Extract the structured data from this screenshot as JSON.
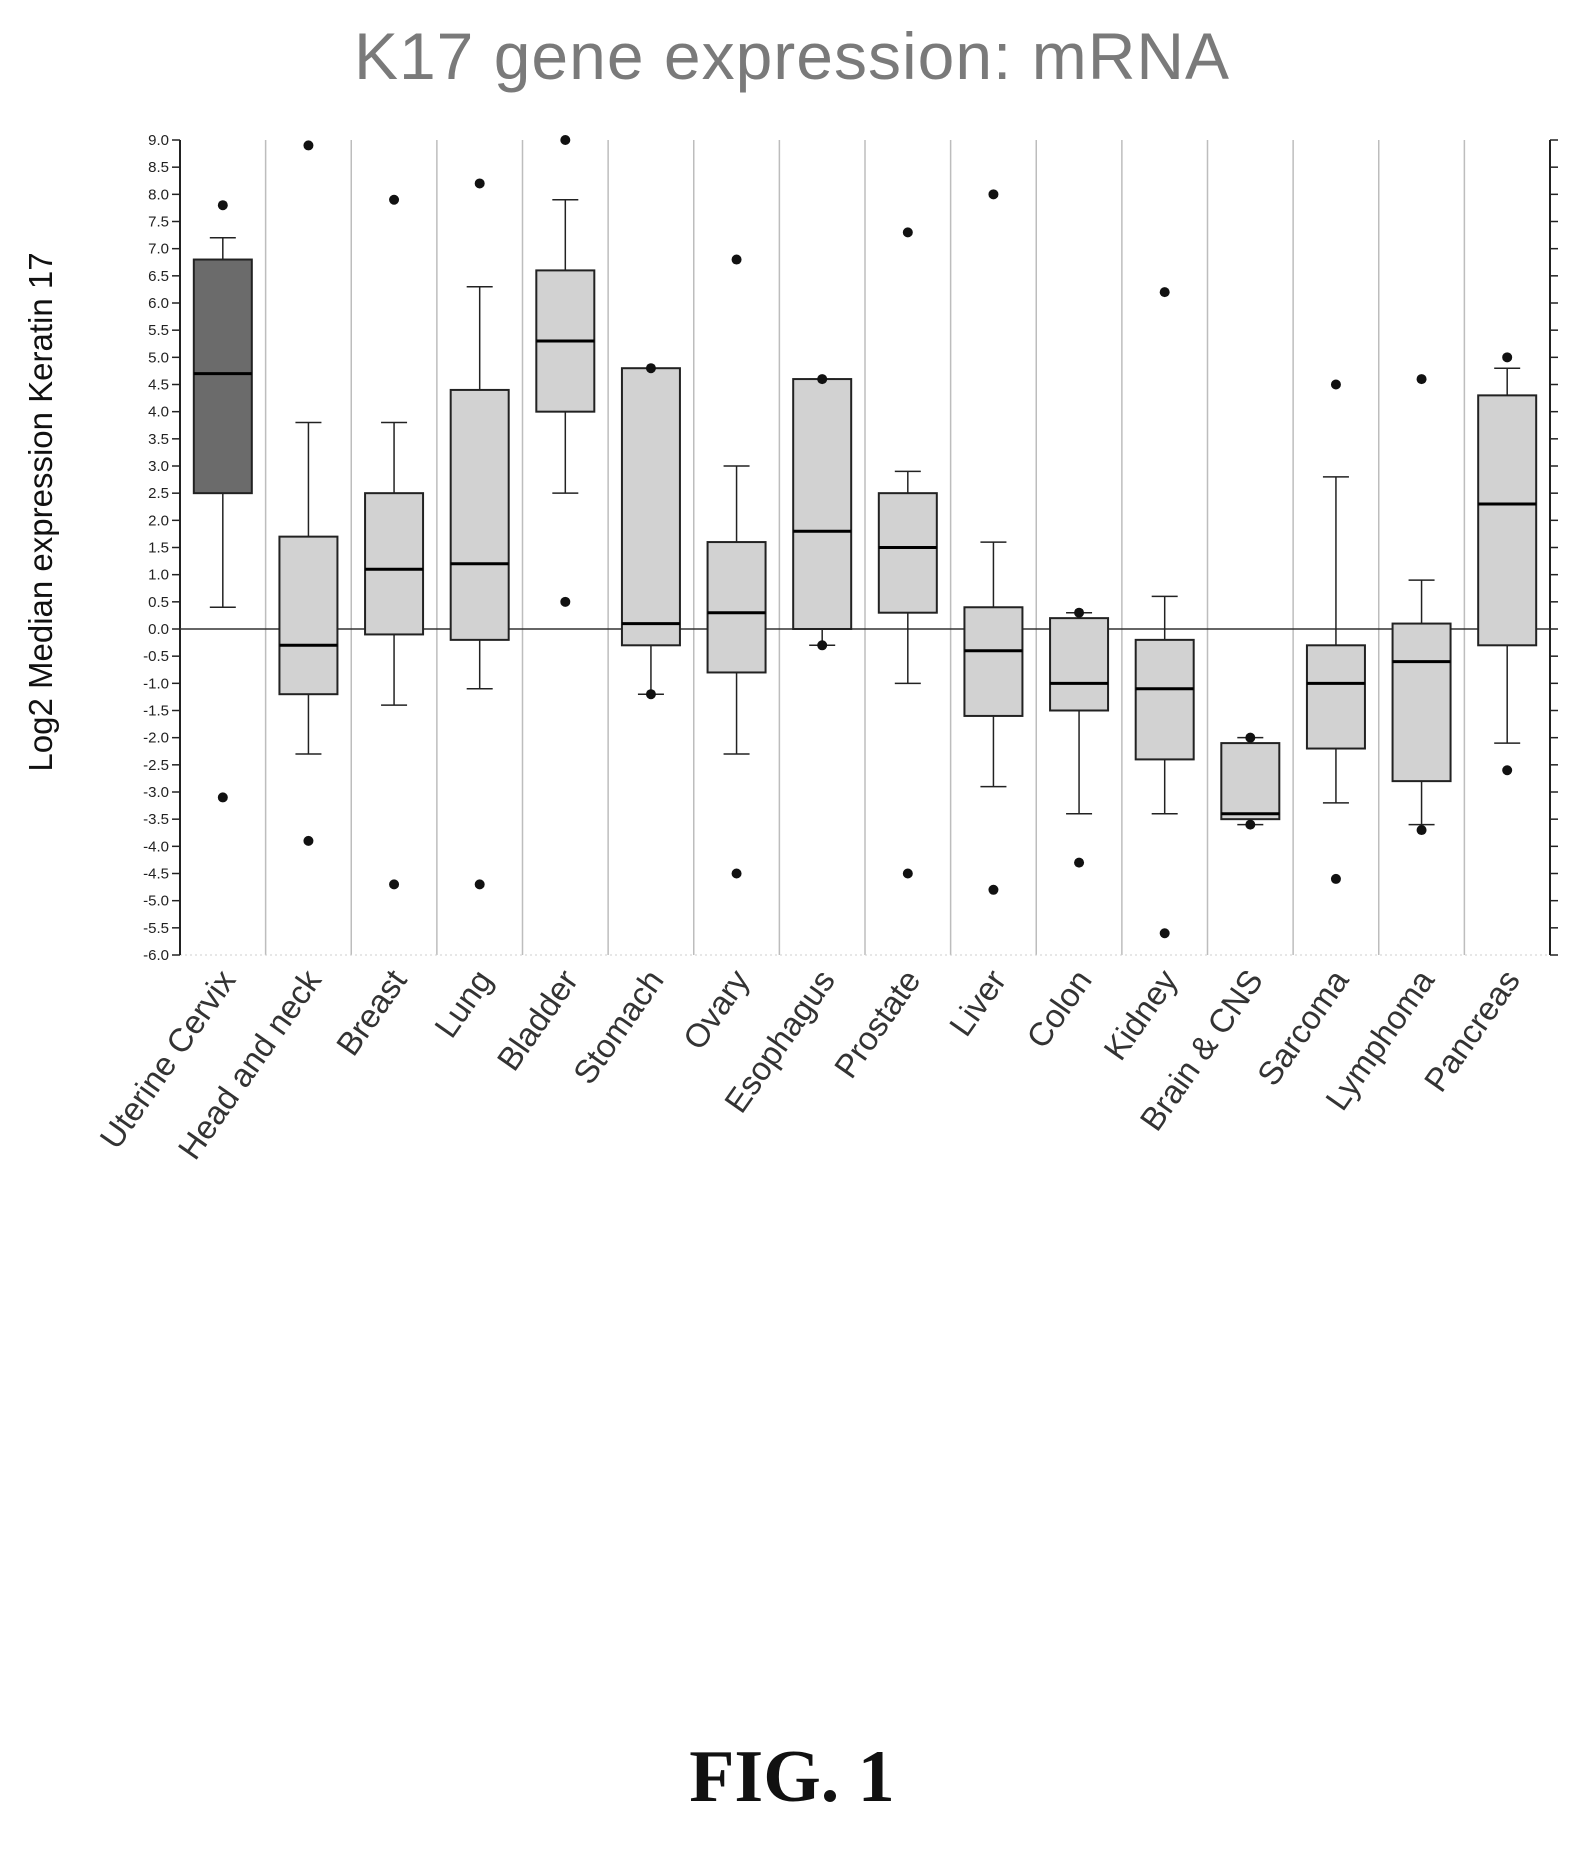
{
  "figure": {
    "label": "FIG. 1"
  },
  "colors": {
    "box_default": "#d2d2d2",
    "box_highlight": "#6b6b6b",
    "stroke": "#222222",
    "panel_line": "#bdbdbd"
  },
  "chart_data": {
    "type": "box",
    "title": "K17 gene expression: mRNA",
    "ylabel": "Log2 Median expression Keratin 17",
    "xlabel": "",
    "ylim": [
      -6.0,
      9.0
    ],
    "yticks": [
      "9.0",
      "8.5",
      "8.0",
      "7.5",
      "7.0",
      "6.5",
      "6.0",
      "5.5",
      "5.0",
      "4.5",
      "4.0",
      "3.5",
      "3.0",
      "2.5",
      "2.0",
      "1.5",
      "1.0",
      "0.5",
      "0.0",
      "-0.5",
      "-1.0",
      "-1.5",
      "-2.0",
      "-2.5",
      "-3.0",
      "-3.5",
      "-4.0",
      "-4.5",
      "-5.0",
      "-5.5",
      "-6.0"
    ],
    "reference_line": 0.0,
    "grid": false,
    "categories": [
      "Uterine Cervix",
      "Head and neck",
      "Breast",
      "Lung",
      "Bladder",
      "Stomach",
      "Ovary",
      "Esophagus",
      "Prostate",
      "Liver",
      "Colon",
      "Kidney",
      "Brain & CNS",
      "Sarcoma",
      "Lymphoma",
      "Pancreas"
    ],
    "boxes": [
      {
        "category": "Uterine Cervix",
        "whisker_low": 0.4,
        "q1": 2.5,
        "median": 4.7,
        "q3": 6.8,
        "whisker_high": 7.2,
        "outliers": [
          -3.1,
          7.8
        ],
        "highlight": true
      },
      {
        "category": "Head and neck",
        "whisker_low": -2.3,
        "q1": -1.2,
        "median": -0.3,
        "q3": 1.7,
        "whisker_high": 3.8,
        "outliers": [
          -3.9,
          8.9
        ],
        "highlight": false
      },
      {
        "category": "Breast",
        "whisker_low": -1.4,
        "q1": -0.1,
        "median": 1.1,
        "q3": 2.5,
        "whisker_high": 3.8,
        "outliers": [
          -4.7,
          7.9
        ],
        "highlight": false
      },
      {
        "category": "Lung",
        "whisker_low": -1.1,
        "q1": -0.2,
        "median": 1.2,
        "q3": 4.4,
        "whisker_high": 6.3,
        "outliers": [
          -4.7,
          8.2
        ],
        "highlight": false
      },
      {
        "category": "Bladder",
        "whisker_low": 2.5,
        "q1": 4.0,
        "median": 5.3,
        "q3": 6.6,
        "whisker_high": 7.9,
        "outliers": [
          0.5,
          9.0
        ],
        "highlight": false
      },
      {
        "category": "Stomach",
        "whisker_low": -1.2,
        "q1": -0.3,
        "median": 0.1,
        "q3": 4.8,
        "whisker_high": 4.8,
        "outliers": [
          -1.2,
          4.8
        ],
        "highlight": false
      },
      {
        "category": "Ovary",
        "whisker_low": -2.3,
        "q1": -0.8,
        "median": 0.3,
        "q3": 1.6,
        "whisker_high": 3.0,
        "outliers": [
          -4.5,
          6.8
        ],
        "highlight": false
      },
      {
        "category": "Esophagus",
        "whisker_low": -0.3,
        "q1": 0.0,
        "median": 1.8,
        "q3": 4.6,
        "whisker_high": 4.6,
        "outliers": [
          -0.3,
          4.6
        ],
        "highlight": false
      },
      {
        "category": "Prostate",
        "whisker_low": -1.0,
        "q1": 0.3,
        "median": 1.5,
        "q3": 2.5,
        "whisker_high": 2.9,
        "outliers": [
          -4.5,
          7.3
        ],
        "highlight": false
      },
      {
        "category": "Liver",
        "whisker_low": -2.9,
        "q1": -1.6,
        "median": -0.4,
        "q3": 0.4,
        "whisker_high": 1.6,
        "outliers": [
          -4.8,
          8.0
        ],
        "highlight": false
      },
      {
        "category": "Colon",
        "whisker_low": -3.4,
        "q1": -1.5,
        "median": -1.0,
        "q3": 0.2,
        "whisker_high": 0.3,
        "outliers": [
          -4.3,
          0.3
        ],
        "highlight": false
      },
      {
        "category": "Kidney",
        "whisker_low": -3.4,
        "q1": -2.4,
        "median": -1.1,
        "q3": -0.2,
        "whisker_high": 0.6,
        "outliers": [
          -5.6,
          6.2
        ],
        "highlight": false
      },
      {
        "category": "Brain & CNS",
        "whisker_low": -3.6,
        "q1": -3.5,
        "median": -3.4,
        "q3": -2.1,
        "whisker_high": -2.0,
        "outliers": [
          -3.6,
          -2.0
        ],
        "highlight": false
      },
      {
        "category": "Sarcoma",
        "whisker_low": -3.2,
        "q1": -2.2,
        "median": -1.0,
        "q3": -0.3,
        "whisker_high": 2.8,
        "outliers": [
          -4.6,
          4.5
        ],
        "highlight": false
      },
      {
        "category": "Lymphoma",
        "whisker_low": -3.6,
        "q1": -2.8,
        "median": -0.6,
        "q3": 0.1,
        "whisker_high": 0.9,
        "outliers": [
          -3.7,
          4.6
        ],
        "highlight": false
      },
      {
        "category": "Pancreas",
        "whisker_low": -2.1,
        "q1": -0.3,
        "median": 2.3,
        "q3": 4.3,
        "whisker_high": 4.8,
        "outliers": [
          -2.6,
          5.0
        ],
        "highlight": false
      }
    ]
  }
}
